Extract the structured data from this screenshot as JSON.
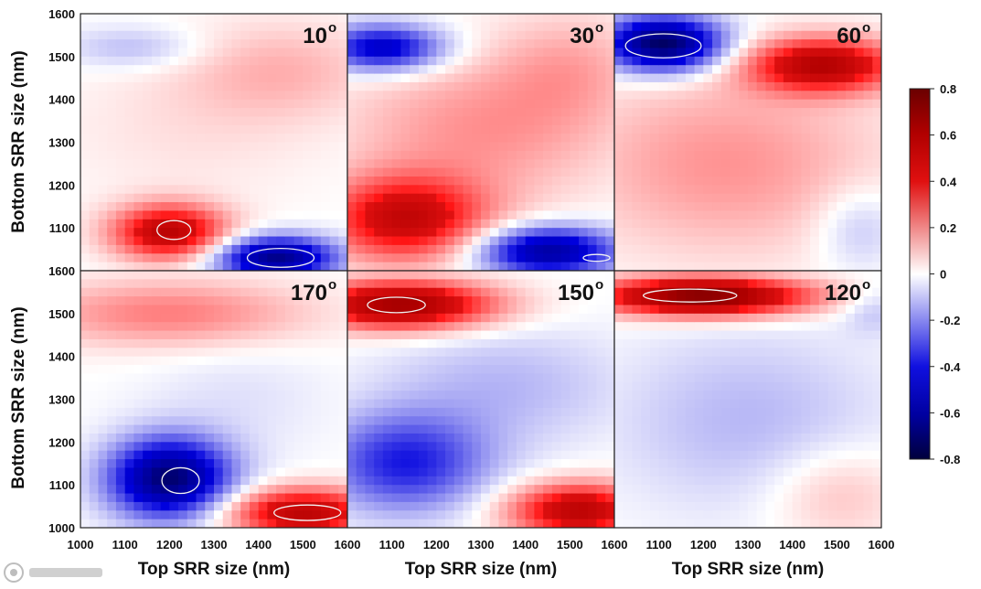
{
  "chart_data": {
    "type": "heatmap",
    "xlabel": "Top SRR size (nm)",
    "ylabel": "Bottom SRR size (nm)",
    "xlim": [
      1000,
      1600
    ],
    "ylim": [
      1000,
      1600
    ],
    "x_ticks": [
      "1000",
      "1100",
      "1200",
      "1300",
      "1400",
      "1500",
      "1600"
    ],
    "y_ticks_top_row": [
      "1600",
      "1500",
      "1400",
      "1300",
      "1200",
      "1100"
    ],
    "y_ticks_bottom_row": [
      "1600",
      "1500",
      "1400",
      "1300",
      "1200",
      "1100",
      "1000"
    ],
    "colorbar": {
      "min": -0.8,
      "max": 0.8,
      "ticks": [
        "0.8",
        "0.6",
        "0.4",
        "0.2",
        "0",
        "-0.2",
        "-0.4",
        "-0.6",
        "-0.8"
      ],
      "colors": {
        "low": "#00003c",
        "mid_low": "#1010e0",
        "zero": "#ffffff",
        "mid_high": "#e01010",
        "high": "#6a0000"
      }
    },
    "panels": [
      {
        "id": "p10",
        "title": "10",
        "unit": "o",
        "row": 0,
        "col": 0,
        "blobs": [
          {
            "x": 1200,
            "y": 1090,
            "sx": 90,
            "sy": 45,
            "a": 0.55
          },
          {
            "x": 1440,
            "y": 1030,
            "sx": 95,
            "sy": 35,
            "a": -0.65
          },
          {
            "x": 1120,
            "y": 1520,
            "sx": 110,
            "sy": 35,
            "a": -0.12
          },
          {
            "x": 1450,
            "y": 1470,
            "sx": 160,
            "sy": 80,
            "a": 0.12
          },
          {
            "x": 1250,
            "y": 1330,
            "sx": 220,
            "sy": 120,
            "a": 0.05
          }
        ],
        "contours": [
          {
            "x": 1210,
            "y": 1095,
            "rx": 38,
            "ry": 22
          },
          {
            "x": 1450,
            "y": 1030,
            "rx": 75,
            "ry": 22
          }
        ]
      },
      {
        "id": "p30",
        "title": "30",
        "unit": "o",
        "row": 0,
        "col": 1,
        "blobs": [
          {
            "x": 1130,
            "y": 1120,
            "sx": 130,
            "sy": 70,
            "a": 0.5
          },
          {
            "x": 1450,
            "y": 1045,
            "sx": 110,
            "sy": 40,
            "a": -0.6
          },
          {
            "x": 1080,
            "y": 1520,
            "sx": 95,
            "sy": 38,
            "a": -0.5
          },
          {
            "x": 1300,
            "y": 1330,
            "sx": 220,
            "sy": 120,
            "a": 0.18
          },
          {
            "x": 1500,
            "y": 1480,
            "sx": 120,
            "sy": 90,
            "a": 0.12
          }
        ],
        "contours": [
          {
            "x": 1560,
            "y": 1030,
            "rx": 30,
            "ry": 8
          }
        ]
      },
      {
        "id": "p60",
        "title": "60",
        "unit": "o",
        "row": 0,
        "col": 2,
        "blobs": [
          {
            "x": 1110,
            "y": 1530,
            "sx": 95,
            "sy": 45,
            "a": -0.75
          },
          {
            "x": 1470,
            "y": 1480,
            "sx": 120,
            "sy": 45,
            "a": 0.55
          },
          {
            "x": 1250,
            "y": 1250,
            "sx": 250,
            "sy": 150,
            "a": 0.18
          },
          {
            "x": 1550,
            "y": 1100,
            "sx": 70,
            "sy": 70,
            "a": -0.12
          }
        ],
        "contours": [
          {
            "x": 1110,
            "y": 1525,
            "rx": 85,
            "ry": 28
          }
        ]
      },
      {
        "id": "p170",
        "title": "170",
        "unit": "o",
        "row": 1,
        "col": 0,
        "blobs": [
          {
            "x": 1200,
            "y": 1115,
            "sx": 95,
            "sy": 65,
            "a": -0.7
          },
          {
            "x": 1500,
            "y": 1035,
            "sx": 120,
            "sy": 40,
            "a": 0.55
          },
          {
            "x": 1200,
            "y": 1500,
            "sx": 220,
            "sy": 55,
            "a": 0.22
          },
          {
            "x": 1350,
            "y": 1300,
            "sx": 150,
            "sy": 100,
            "a": -0.05
          }
        ],
        "contours": [
          {
            "x": 1225,
            "y": 1110,
            "rx": 42,
            "ry": 30
          },
          {
            "x": 1510,
            "y": 1035,
            "rx": 75,
            "ry": 18
          }
        ]
      },
      {
        "id": "p150",
        "title": "150",
        "unit": "o",
        "row": 1,
        "col": 1,
        "blobs": [
          {
            "x": 1120,
            "y": 1520,
            "sx": 150,
            "sy": 40,
            "a": 0.65
          },
          {
            "x": 1130,
            "y": 1150,
            "sx": 130,
            "sy": 80,
            "a": -0.38
          },
          {
            "x": 1520,
            "y": 1040,
            "sx": 110,
            "sy": 45,
            "a": 0.55
          },
          {
            "x": 1350,
            "y": 1330,
            "sx": 200,
            "sy": 100,
            "a": -0.12
          }
        ],
        "contours": [
          {
            "x": 1110,
            "y": 1520,
            "rx": 65,
            "ry": 18
          }
        ]
      },
      {
        "id": "p120",
        "title": "120",
        "unit": "o",
        "row": 1,
        "col": 2,
        "blobs": [
          {
            "x": 1200,
            "y": 1540,
            "sx": 170,
            "sy": 32,
            "a": 0.75
          },
          {
            "x": 1300,
            "y": 1250,
            "sx": 220,
            "sy": 150,
            "a": -0.12
          },
          {
            "x": 1500,
            "y": 1080,
            "sx": 110,
            "sy": 80,
            "a": 0.12
          },
          {
            "x": 1580,
            "y": 1510,
            "sx": 50,
            "sy": 40,
            "a": -0.1
          }
        ],
        "contours": [
          {
            "x": 1170,
            "y": 1542,
            "rx": 105,
            "ry": 15
          }
        ]
      }
    ]
  }
}
